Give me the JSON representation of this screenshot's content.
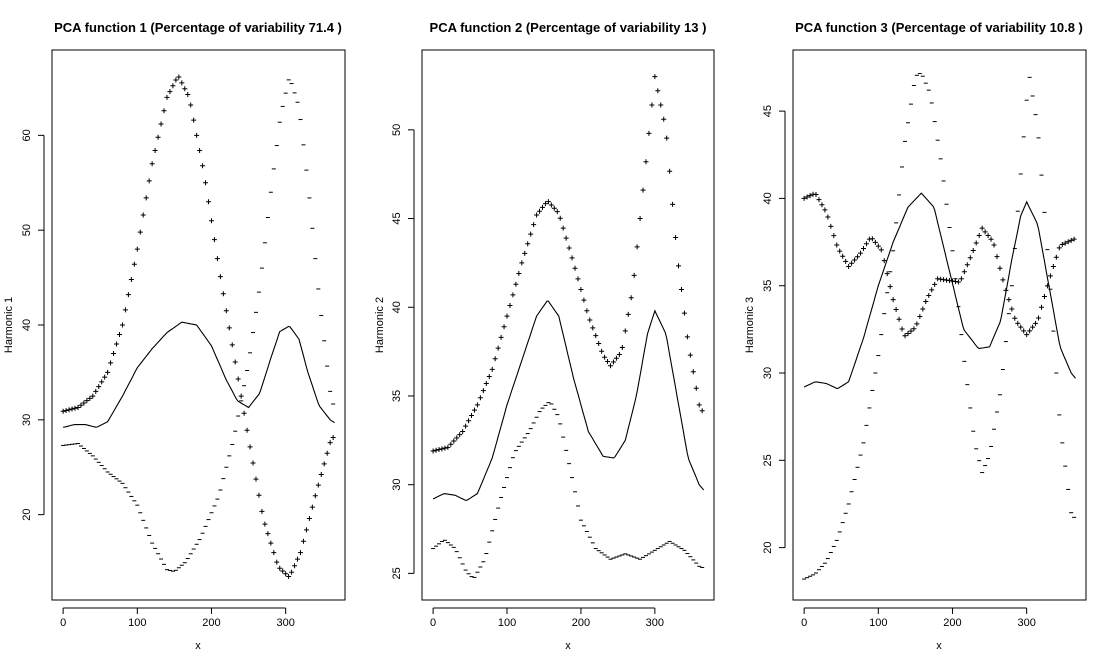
{
  "chart_data": [
    {
      "type": "line",
      "title": "PCA function 1 (Percentage of variability 71.4 )",
      "xlabel": "x",
      "ylabel": "Harmonic 1",
      "xlim": [
        -15,
        380
      ],
      "ylim": [
        11,
        69
      ],
      "xticks": [
        0,
        100,
        200,
        300
      ],
      "yticks": [
        20,
        30,
        40,
        50,
        60
      ],
      "grid": false,
      "series": [
        {
          "style": "line",
          "x": [
            0,
            15,
            30,
            45,
            60,
            80,
            100,
            120,
            140,
            160,
            180,
            200,
            220,
            235,
            250,
            265,
            280,
            292,
            305,
            318,
            330,
            345,
            360,
            366
          ],
          "values": [
            29.2,
            29.5,
            29.5,
            29.2,
            29.8,
            32.5,
            35.5,
            37.5,
            39.2,
            40.3,
            40.0,
            37.8,
            34.2,
            32.0,
            31.3,
            32.8,
            36.5,
            39.3,
            39.9,
            38.5,
            35.0,
            31.5,
            30.0,
            29.7
          ]
        },
        {
          "style": "plus",
          "x": [
            0,
            20,
            40,
            60,
            80,
            100,
            120,
            140,
            155,
            170,
            190,
            210,
            230,
            250,
            270,
            290,
            305,
            320,
            340,
            360,
            366
          ],
          "values": [
            30.9,
            31.3,
            32.5,
            35.0,
            40.0,
            48.0,
            57.0,
            64.0,
            66.3,
            64.0,
            56.0,
            46.0,
            37.0,
            28.0,
            19.5,
            14.5,
            13.4,
            16.0,
            22.0,
            27.6,
            28.4
          ]
        },
        {
          "style": "minus",
          "x": [
            0,
            20,
            40,
            60,
            80,
            100,
            120,
            140,
            150,
            165,
            185,
            210,
            230,
            250,
            265,
            280,
            293,
            305,
            318,
            330,
            345,
            360,
            366
          ],
          "values": [
            27.3,
            27.5,
            26.2,
            24.5,
            23.3,
            21.0,
            17.0,
            14.2,
            14.0,
            15.0,
            17.5,
            22.0,
            28.0,
            36.0,
            44.0,
            54.0,
            62.0,
            66.2,
            63.0,
            55.0,
            43.0,
            33.0,
            31.0
          ]
        }
      ]
    },
    {
      "type": "line",
      "title": "PCA function 2 (Percentage of variability 13 )",
      "xlabel": "x",
      "ylabel": "Harmonic 2",
      "xlim": [
        -15,
        380
      ],
      "ylim": [
        23.5,
        54.5
      ],
      "xticks": [
        0,
        100,
        200,
        300
      ],
      "yticks": [
        25,
        30,
        35,
        40,
        45,
        50
      ],
      "grid": false,
      "series": [
        {
          "style": "line",
          "x": [
            0,
            15,
            30,
            45,
            60,
            80,
            100,
            120,
            140,
            155,
            170,
            190,
            210,
            230,
            245,
            260,
            275,
            290,
            300,
            315,
            330,
            345,
            360,
            366
          ],
          "values": [
            29.2,
            29.5,
            29.4,
            29.1,
            29.5,
            31.5,
            34.5,
            37.0,
            39.5,
            40.4,
            39.5,
            36.0,
            33.0,
            31.6,
            31.5,
            32.5,
            35.0,
            38.5,
            39.8,
            38.5,
            35.0,
            31.5,
            30.0,
            29.7
          ]
        },
        {
          "style": "plus",
          "x": [
            0,
            20,
            40,
            60,
            80,
            100,
            120,
            140,
            155,
            170,
            190,
            210,
            230,
            240,
            255,
            270,
            285,
            300,
            315,
            330,
            345,
            360,
            366
          ],
          "values": [
            31.9,
            32.1,
            33.0,
            34.5,
            36.5,
            39.5,
            42.5,
            45.2,
            46.0,
            45.3,
            42.5,
            39.5,
            37.3,
            36.7,
            37.5,
            41.0,
            47.0,
            53.0,
            50.0,
            43.0,
            38.0,
            34.5,
            34.0
          ]
        },
        {
          "style": "minus",
          "x": [
            0,
            15,
            30,
            45,
            55,
            70,
            90,
            110,
            130,
            145,
            158,
            170,
            185,
            200,
            220,
            240,
            260,
            280,
            300,
            320,
            340,
            360,
            366
          ],
          "values": [
            26.4,
            26.9,
            26.4,
            25.1,
            24.7,
            25.8,
            29.0,
            31.8,
            33.0,
            34.2,
            34.7,
            33.8,
            31.0,
            28.0,
            26.4,
            25.8,
            26.1,
            25.8,
            26.3,
            26.8,
            26.3,
            25.4,
            25.3
          ]
        }
      ]
    },
    {
      "type": "line",
      "title": "PCA function 3 (Percentage of variability 10.8 )",
      "xlabel": "x",
      "ylabel": "Harmonic 3",
      "xlim": [
        -15,
        380
      ],
      "ylim": [
        17,
        48.5
      ],
      "xticks": [
        0,
        100,
        200,
        300
      ],
      "yticks": [
        20,
        25,
        30,
        35,
        40,
        45
      ],
      "grid": false,
      "series": [
        {
          "style": "line",
          "x": [
            0,
            15,
            30,
            45,
            60,
            80,
            100,
            120,
            140,
            158,
            175,
            195,
            215,
            235,
            250,
            265,
            280,
            292,
            300,
            315,
            330,
            345,
            360,
            366
          ],
          "values": [
            29.2,
            29.5,
            29.4,
            29.1,
            29.5,
            32.0,
            35.0,
            37.5,
            39.5,
            40.3,
            39.5,
            36.0,
            32.5,
            31.4,
            31.5,
            33.0,
            36.5,
            39.0,
            39.8,
            38.5,
            35.0,
            31.5,
            30.0,
            29.7
          ]
        },
        {
          "style": "plus",
          "x": [
            0,
            15,
            30,
            45,
            60,
            75,
            90,
            105,
            120,
            135,
            150,
            165,
            180,
            195,
            210,
            225,
            240,
            255,
            270,
            285,
            300,
            315,
            330,
            345,
            360,
            366
          ],
          "values": [
            40.0,
            40.3,
            39.2,
            37.2,
            36.1,
            36.8,
            37.8,
            37.0,
            34.2,
            32.1,
            32.6,
            34.2,
            35.4,
            35.3,
            35.2,
            36.7,
            38.3,
            37.5,
            35.0,
            33.0,
            32.2,
            33.0,
            35.3,
            37.3,
            37.6,
            37.7
          ]
        },
        {
          "style": "minus",
          "x": [
            0,
            15,
            30,
            45,
            60,
            80,
            100,
            120,
            135,
            150,
            158,
            170,
            185,
            200,
            215,
            230,
            240,
            250,
            265,
            280,
            295,
            303,
            315,
            330,
            345,
            360,
            366
          ],
          "values": [
            18.2,
            18.5,
            19.2,
            20.5,
            22.5,
            26.0,
            31.0,
            37.0,
            43.0,
            47.0,
            47.2,
            46.0,
            42.0,
            37.0,
            31.0,
            26.0,
            24.3,
            25.3,
            29.0,
            35.0,
            43.0,
            47.2,
            44.0,
            36.0,
            27.0,
            22.0,
            21.6
          ]
        }
      ]
    }
  ]
}
